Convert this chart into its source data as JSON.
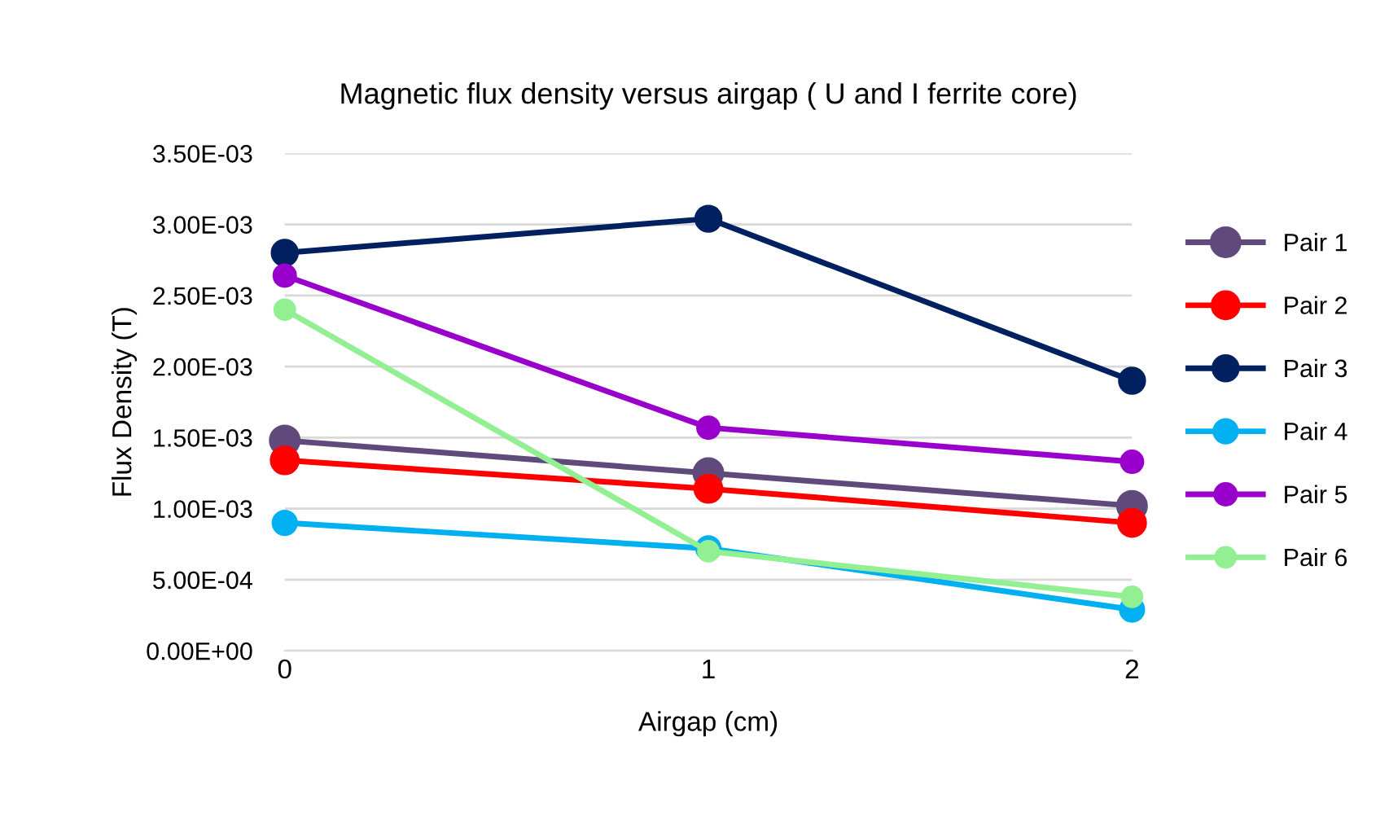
{
  "chart_data": {
    "type": "line",
    "title": "Magnetic flux density versus airgap ( U and I ferrite core)",
    "xlabel": "Airgap (cm)",
    "ylabel": "Flux Density (T)",
    "x": [
      0,
      1,
      2
    ],
    "series": [
      {
        "name": "Pair 1",
        "color": "#604a7b",
        "values": [
          0.00148,
          0.00125,
          0.00102
        ]
      },
      {
        "name": "Pair 2",
        "color": "#ff0000",
        "values": [
          0.00134,
          0.00114,
          0.0009
        ]
      },
      {
        "name": "Pair 3",
        "color": "#002060",
        "values": [
          0.0028,
          0.00304,
          0.0019
        ]
      },
      {
        "name": "Pair 4",
        "color": "#00b0f0",
        "values": [
          0.0009,
          0.00072,
          0.00029
        ]
      },
      {
        "name": "Pair 5",
        "color": "#9900cc",
        "values": [
          0.00264,
          0.00157,
          0.00133
        ]
      },
      {
        "name": "Pair 6",
        "color": "#92f092",
        "values": [
          0.0024,
          0.0007,
          0.00038
        ]
      }
    ],
    "xlim": [
      0,
      2
    ],
    "xticks": [
      0,
      1,
      2
    ],
    "ylim": [
      0,
      0.0035
    ],
    "yticks": [
      {
        "value": 0,
        "label": "0.00E+00"
      },
      {
        "value": 0.0005,
        "label": "5.00E-04"
      },
      {
        "value": 0.001,
        "label": "1.00E-03"
      },
      {
        "value": 0.0015,
        "label": "1.50E-03"
      },
      {
        "value": 0.002,
        "label": "2.00E-03"
      },
      {
        "value": 0.0025,
        "label": "2.50E-03"
      },
      {
        "value": 0.003,
        "label": "3.00E-03"
      },
      {
        "value": 0.0035,
        "label": "3.50E-03"
      }
    ],
    "grid": "y",
    "legend": "right",
    "marker": "circle",
    "line_style": "solid"
  }
}
